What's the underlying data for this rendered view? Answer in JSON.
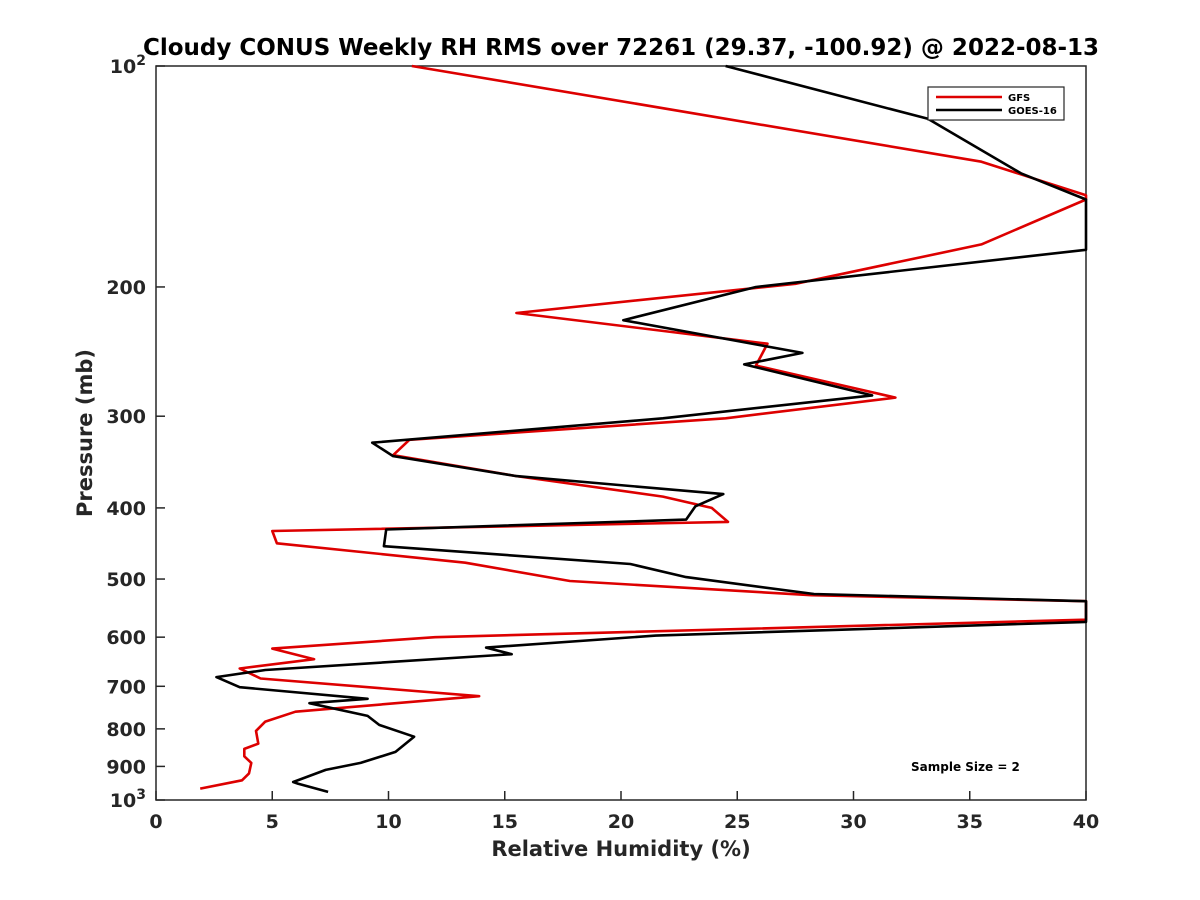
{
  "chart_data": {
    "type": "line",
    "title": "Cloudy CONUS Weekly RH RMS over 72261 (29.37, -100.92) @ 2022-08-13",
    "xlabel": "Relative Humidity (%)",
    "ylabel": "Pressure (mb)",
    "xlim": [
      0,
      40
    ],
    "ylim": [
      100,
      1000
    ],
    "y_scale": "log",
    "y_reversed": true,
    "x_ticks": [
      "0",
      "5",
      "10",
      "15",
      "20",
      "25",
      "30",
      "35",
      "40"
    ],
    "y_ticks": [
      {
        "value": 100,
        "base": "10",
        "exp": "2"
      },
      {
        "value": 200,
        "label": "200"
      },
      {
        "value": 300,
        "label": "300"
      },
      {
        "value": 400,
        "label": "400"
      },
      {
        "value": 500,
        "label": "500"
      },
      {
        "value": 600,
        "label": "600"
      },
      {
        "value": 700,
        "label": "700"
      },
      {
        "value": 800,
        "label": "800"
      },
      {
        "value": 900,
        "label": "900"
      },
      {
        "value": 1000,
        "base": "10",
        "exp": "3"
      }
    ],
    "grid": false,
    "legend": "top-right",
    "annotation": "Sample Size = 2",
    "series": [
      {
        "name": "GFS",
        "color": "#dd0000",
        "points": [
          [
            11.0,
            100
          ],
          [
            35.5,
            135
          ],
          [
            40.0,
            150
          ],
          [
            40.0,
            152
          ],
          [
            35.5,
            175
          ],
          [
            27.5,
            198
          ],
          [
            15.5,
            217
          ],
          [
            26.3,
            239
          ],
          [
            25.8,
            256
          ],
          [
            31.8,
            283
          ],
          [
            24.5,
            302
          ],
          [
            10.9,
            323
          ],
          [
            10.2,
            339
          ],
          [
            15.5,
            362
          ],
          [
            21.8,
            386
          ],
          [
            23.9,
            400
          ],
          [
            24.6,
            418
          ],
          [
            5.0,
            430
          ],
          [
            5.2,
            447
          ],
          [
            13.3,
            475
          ],
          [
            17.8,
            503
          ],
          [
            28.2,
            526
          ],
          [
            40.0,
            536
          ],
          [
            40.0,
            568
          ],
          [
            12.0,
            600
          ],
          [
            5.0,
            622
          ],
          [
            6.8,
            643
          ],
          [
            3.6,
            662
          ],
          [
            4.5,
            683
          ],
          [
            13.9,
            722
          ],
          [
            6.0,
            758
          ],
          [
            4.7,
            782
          ],
          [
            4.3,
            805
          ],
          [
            4.4,
            838
          ],
          [
            3.8,
            852
          ],
          [
            3.8,
            872
          ],
          [
            4.1,
            890
          ],
          [
            4.0,
            920
          ],
          [
            3.7,
            940
          ],
          [
            1.9,
            965
          ]
        ]
      },
      {
        "name": "GOES-16",
        "color": "#000000",
        "points": [
          [
            24.5,
            100
          ],
          [
            33.2,
            118
          ],
          [
            37.2,
            140
          ],
          [
            40.0,
            152
          ],
          [
            40.0,
            178
          ],
          [
            25.8,
            200
          ],
          [
            20.1,
            222
          ],
          [
            27.8,
            246
          ],
          [
            25.3,
            255
          ],
          [
            30.8,
            281
          ],
          [
            21.8,
            302
          ],
          [
            9.3,
            326
          ],
          [
            10.2,
            340
          ],
          [
            15.5,
            362
          ],
          [
            24.4,
            383
          ],
          [
            23.2,
            398
          ],
          [
            22.8,
            415
          ],
          [
            9.9,
            428
          ],
          [
            9.8,
            451
          ],
          [
            20.4,
            477
          ],
          [
            22.8,
            497
          ],
          [
            28.3,
            524
          ],
          [
            40.0,
            536
          ],
          [
            40.0,
            572
          ],
          [
            21.5,
            597
          ],
          [
            14.2,
            620
          ],
          [
            15.3,
            633
          ],
          [
            4.7,
            665
          ],
          [
            2.6,
            680
          ],
          [
            3.6,
            702
          ],
          [
            9.1,
            728
          ],
          [
            6.6,
            738
          ],
          [
            9.1,
            768
          ],
          [
            9.6,
            790
          ],
          [
            11.1,
            820
          ],
          [
            10.3,
            860
          ],
          [
            8.8,
            890
          ],
          [
            7.3,
            910
          ],
          [
            5.9,
            945
          ],
          [
            6.1,
            950
          ],
          [
            7.4,
            975
          ]
        ]
      }
    ]
  }
}
